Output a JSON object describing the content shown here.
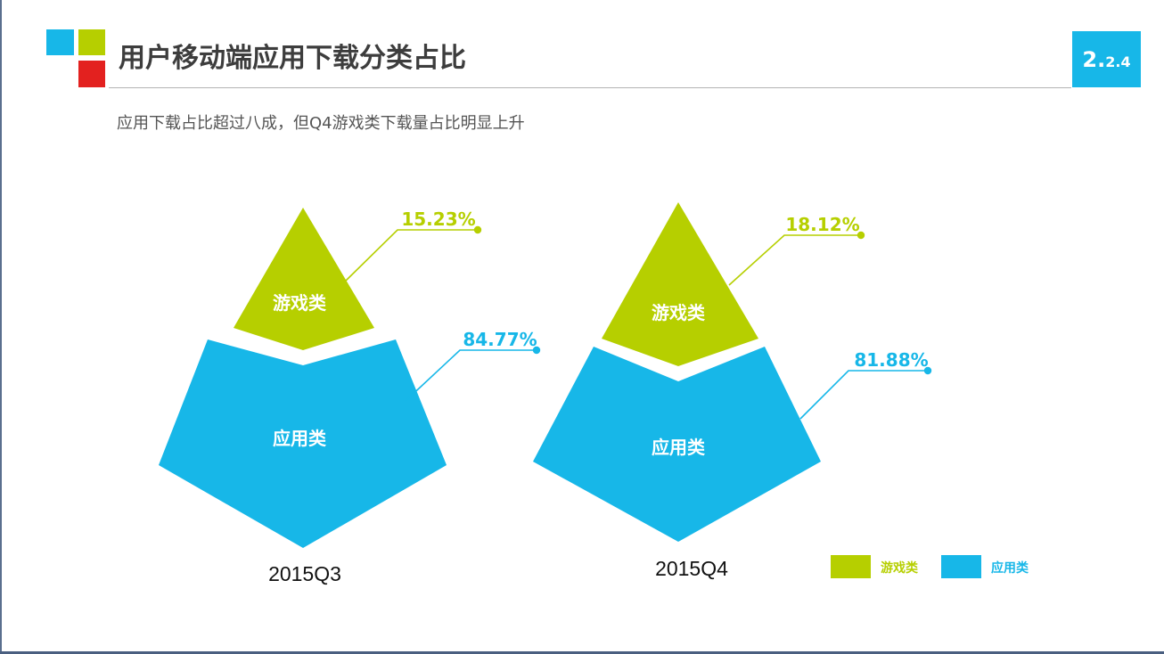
{
  "header": {
    "title": "用户移动端应用下载分类占比",
    "section_number_main": "2.",
    "section_number_sub": "2.4",
    "subtitle": "应用下载占比超过八成，但Q4游戏类下载量占比明显上升"
  },
  "colors": {
    "games": "#b6cf00",
    "apps": "#17b7e8",
    "logo_blue": "#17b7e8",
    "logo_green": "#b6cf00",
    "logo_red": "#e3211f",
    "title_text": "#3d3d3d"
  },
  "chart_data": {
    "type": "pie",
    "categories": [
      "游戏类",
      "应用类"
    ],
    "series": [
      {
        "name": "2015Q3",
        "values": [
          15.23,
          84.77
        ],
        "labels": [
          "15.23%",
          "84.77%"
        ]
      },
      {
        "name": "2015Q4",
        "values": [
          18.12,
          81.88
        ],
        "labels": [
          "18.12%",
          "81.88%"
        ]
      }
    ],
    "legend": {
      "position": "bottom-right",
      "items": [
        {
          "label": "游戏类",
          "color": "#b6cf00"
        },
        {
          "label": "应用类",
          "color": "#17b7e8"
        }
      ]
    }
  }
}
